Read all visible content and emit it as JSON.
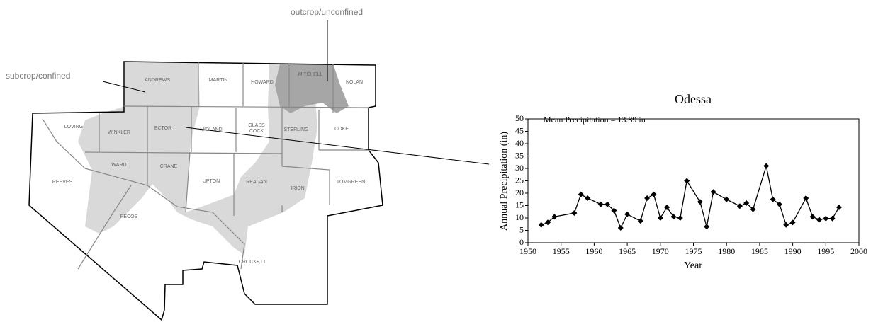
{
  "map": {
    "annotations": [
      "subcrop/confined",
      "outcrop/unconfined"
    ],
    "counties": [
      "ANDREWS",
      "MARTIN",
      "HOWARD",
      "MITCHELL",
      "NOLAN",
      "LOVING",
      "WINKLER",
      "ECTOR",
      "MIDLAND",
      "GLASS",
      "COCK",
      "STERLING",
      "COKE",
      "WARD",
      "REEVES",
      "CRANE",
      "UPTON",
      "REAGAN",
      "IRION",
      "TOMGREEN",
      "PECOS",
      "CROCKETT"
    ]
  },
  "chart_data": {
    "type": "line",
    "title": "Odessa",
    "annotation": "Mean Precipitation = 13.89 in",
    "xlabel": "Year",
    "ylabel": "Annual Precipitation (in)",
    "x": [
      1952,
      1953,
      1954,
      1957,
      1958,
      1959,
      1961,
      1962,
      1963,
      1964,
      1965,
      1967,
      1968,
      1969,
      1970,
      1971,
      1972,
      1973,
      1974,
      1976,
      1977,
      1978,
      1980,
      1982,
      1983,
      1984,
      1986,
      1987,
      1988,
      1989,
      1990,
      1992,
      1993,
      1994,
      1995,
      1996,
      1997
    ],
    "values": [
      7.2,
      8.2,
      10.5,
      12,
      19.5,
      18,
      15.5,
      15.5,
      13,
      6,
      11.5,
      8.8,
      18,
      19.5,
      10,
      14.3,
      10.5,
      10,
      25,
      16.5,
      6.5,
      20.5,
      17.5,
      14.8,
      16,
      13.5,
      31,
      17.5,
      15.5,
      7.2,
      8.2,
      18,
      10.5,
      9.3,
      9.8,
      9.8,
      14.3
    ],
    "color": "#000000",
    "xlim": [
      1950,
      2000
    ],
    "xticks": [
      1950,
      1955,
      1960,
      1965,
      1970,
      1975,
      1980,
      1985,
      1990,
      1995,
      2000
    ],
    "ylim": [
      0,
      50
    ],
    "yticks": [
      0,
      5,
      10,
      15,
      20,
      25,
      30,
      35,
      40,
      45,
      50
    ]
  }
}
